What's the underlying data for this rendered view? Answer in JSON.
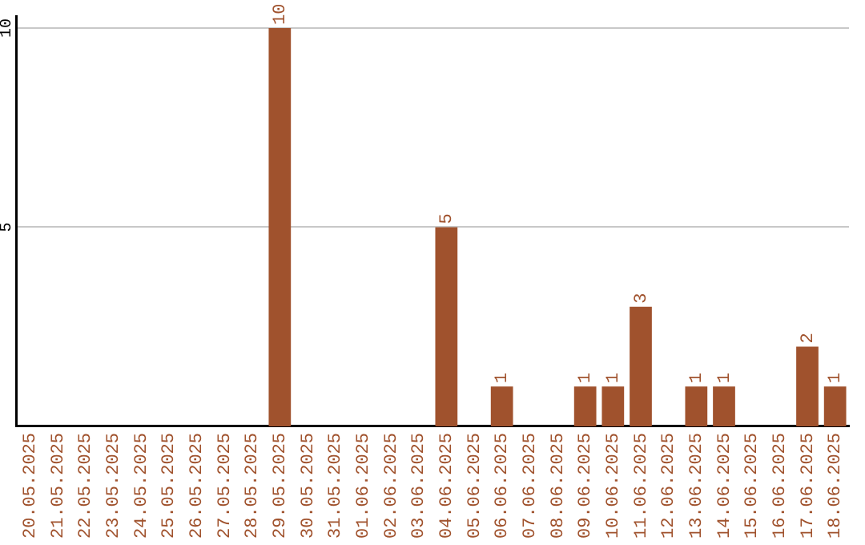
{
  "chart_data": {
    "type": "bar",
    "categories": [
      "20.05.2025",
      "21.05.2025",
      "22.05.2025",
      "23.05.2025",
      "24.05.2025",
      "25.05.2025",
      "26.05.2025",
      "27.05.2025",
      "28.05.2025",
      "29.05.2025",
      "30.05.2025",
      "31.05.2025",
      "01.06.2025",
      "02.06.2025",
      "03.06.2025",
      "04.06.2025",
      "05.06.2025",
      "06.06.2025",
      "07.06.2025",
      "08.06.2025",
      "09.06.2025",
      "10.06.2025",
      "11.06.2025",
      "12.06.2025",
      "13.06.2025",
      "14.06.2025",
      "15.06.2025",
      "16.06.2025",
      "17.06.2025",
      "18.06.2025"
    ],
    "values": [
      0,
      0,
      0,
      0,
      0,
      0,
      0,
      0,
      0,
      10,
      0,
      0,
      0,
      0,
      0,
      5,
      0,
      1,
      0,
      0,
      1,
      1,
      3,
      0,
      1,
      1,
      0,
      0,
      2,
      1
    ],
    "value_labels": [
      null,
      null,
      null,
      null,
      null,
      null,
      null,
      null,
      null,
      "10",
      null,
      null,
      null,
      null,
      null,
      "5",
      null,
      "1",
      null,
      null,
      "1",
      "1",
      "3",
      null,
      "1",
      "1",
      null,
      null,
      "2",
      "1"
    ],
    "color": "#a0522d",
    "ylim": [
      0,
      10.3
    ],
    "yticks": [
      5,
      10
    ],
    "grid": "y",
    "legend": false
  }
}
